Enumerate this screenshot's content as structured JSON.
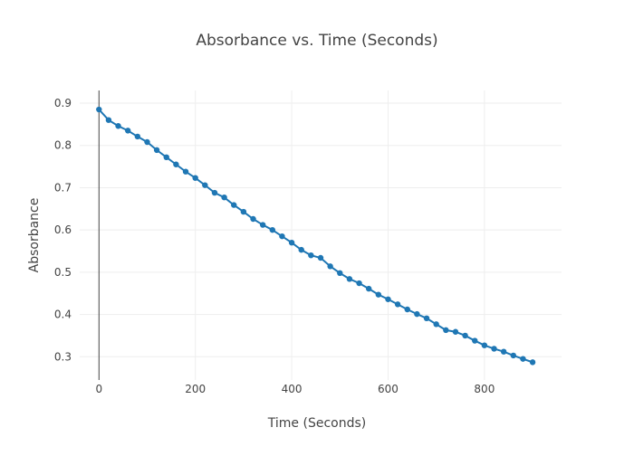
{
  "chart_data": {
    "type": "scatter",
    "mode": "lines+markers",
    "title": "Absorbance vs. Time (Seconds)",
    "xlabel": "Time (Seconds)",
    "ylabel": "Absorbance",
    "xlim": [
      -40,
      960
    ],
    "ylim": [
      0.245,
      0.93
    ],
    "xticks": [
      0,
      200,
      400,
      600,
      800
    ],
    "xtick_labels": [
      "0",
      "200",
      "400",
      "600",
      "800"
    ],
    "yticks": [
      0.3,
      0.4,
      0.5,
      0.6,
      0.7,
      0.8,
      0.9
    ],
    "ytick_labels": [
      "0.3",
      "0.4",
      "0.5",
      "0.6",
      "0.7",
      "0.8",
      "0.9"
    ],
    "grid": true,
    "legend": false,
    "series": [
      {
        "color": "#1f77b4",
        "x": [
          0,
          20,
          40,
          60,
          80,
          100,
          120,
          140,
          160,
          180,
          200,
          220,
          240,
          260,
          280,
          300,
          320,
          340,
          360,
          380,
          400,
          420,
          440,
          460,
          480,
          500,
          520,
          540,
          560,
          580,
          600,
          620,
          640,
          660,
          680,
          700,
          720,
          740,
          760,
          780,
          800,
          820,
          840,
          860,
          880,
          900
        ],
        "y": [
          0.885,
          0.86,
          0.846,
          0.835,
          0.821,
          0.808,
          0.789,
          0.772,
          0.755,
          0.738,
          0.723,
          0.706,
          0.688,
          0.677,
          0.659,
          0.643,
          0.626,
          0.612,
          0.6,
          0.585,
          0.57,
          0.553,
          0.54,
          0.534,
          0.514,
          0.498,
          0.484,
          0.474,
          0.461,
          0.447,
          0.436,
          0.424,
          0.412,
          0.401,
          0.391,
          0.377,
          0.363,
          0.359,
          0.35,
          0.338,
          0.327,
          0.319,
          0.312,
          0.303,
          0.295,
          0.287
        ]
      }
    ]
  }
}
